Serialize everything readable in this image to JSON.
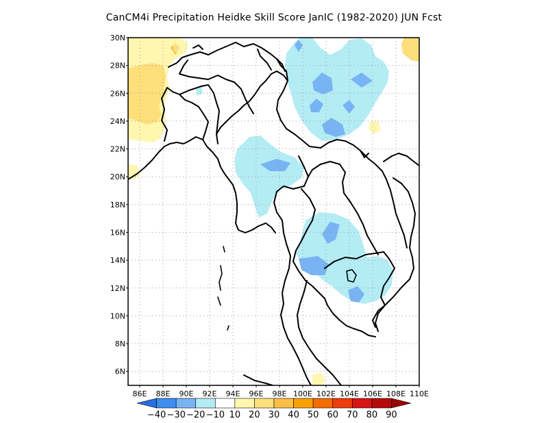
{
  "title": "CanCM4i  Precipitation Heidke Skill Score JanIC (1982-2020) JUN Fcst",
  "map": {
    "lon_range": [
      85,
      110
    ],
    "lat_range": [
      5,
      30
    ],
    "lat_ticks": [
      "6N",
      "8N",
      "10N",
      "12N",
      "14N",
      "16N",
      "18N",
      "20N",
      "22N",
      "24N",
      "26N",
      "28N",
      "30N"
    ],
    "lat_values": [
      6,
      8,
      10,
      12,
      14,
      16,
      18,
      20,
      22,
      24,
      26,
      28,
      30
    ],
    "lon_ticks": [
      "86E",
      "88E",
      "90E",
      "92E",
      "94E",
      "96E",
      "98E",
      "100E",
      "102E",
      "104E",
      "106E",
      "108E",
      "110E"
    ],
    "lon_values": [
      86,
      88,
      90,
      92,
      94,
      96,
      98,
      100,
      102,
      104,
      106,
      108,
      110
    ],
    "grid": "dotted"
  },
  "colorbar": {
    "colors": [
      "#2a6fe0",
      "#3e8ef0",
      "#78b4f4",
      "#b4ecf4",
      "#ffffff",
      "#fff6b0",
      "#fde07a",
      "#fbbf45",
      "#f9a000",
      "#f56c00",
      "#ee3c0c",
      "#d81414",
      "#b50a0a",
      "#9a0000"
    ],
    "labels": [
      "-40",
      "-30",
      "-20",
      "-10",
      "10",
      "20",
      "30",
      "40",
      "50",
      "60",
      "70",
      "80",
      "90"
    ]
  },
  "legend": {
    "cyan": "#b4ecf4",
    "lightblue": "#78b4f4",
    "lightyellow": "#fff6b0",
    "yellow": "#fde07a",
    "orange": "#fbbf45"
  }
}
